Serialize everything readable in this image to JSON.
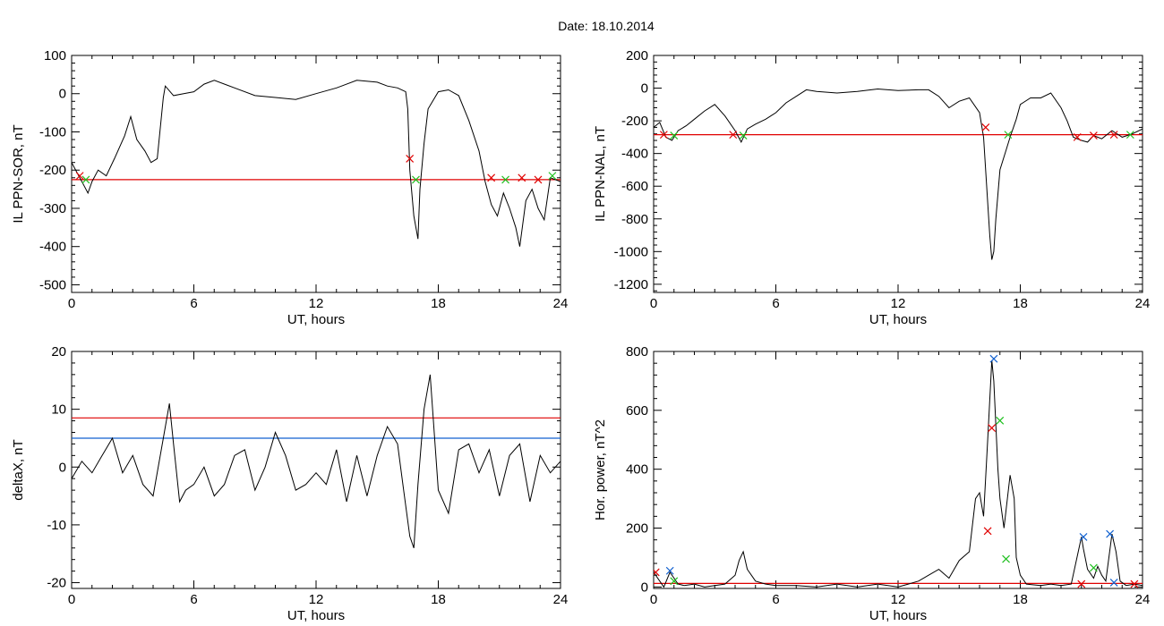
{
  "figure": {
    "title": "Date:  18.10.2014"
  },
  "colors": {
    "trace": "#000000",
    "threshold_red": "#e00000",
    "threshold_blue": "#1060d0",
    "marker_green": "#20c020",
    "marker_red": "#e00000",
    "marker_blue": "#1060d0"
  },
  "chart_data": [
    {
      "id": "p1",
      "type": "line",
      "xlabel": "UT, hours",
      "ylabel": "IL PPN-SOR, nT",
      "xlim": [
        0,
        24
      ],
      "ylim": [
        -520,
        100
      ],
      "xticks": [
        0,
        6,
        12,
        18,
        24
      ],
      "yticks": [
        100,
        0,
        -100,
        -200,
        -300,
        -400,
        -500
      ],
      "series": [
        {
          "role": "trace",
          "color": "#000000",
          "x": [
            0,
            0.3,
            0.6,
            0.8,
            1,
            1.3,
            1.7,
            2.1,
            2.6,
            2.9,
            3.2,
            3.6,
            3.9,
            4.2,
            4.5,
            4.6,
            5,
            5.5,
            6,
            6.5,
            7,
            8,
            9,
            10,
            11,
            12,
            13,
            14,
            15,
            15.5,
            16,
            16.4,
            16.5,
            16.6,
            16.8,
            17,
            17.1,
            17.3,
            17.5,
            18,
            18.5,
            19,
            19.5,
            20,
            20.3,
            20.6,
            20.9,
            21.2,
            21.5,
            21.8,
            22,
            22.3,
            22.6,
            22.9,
            23.2,
            23.5,
            24
          ],
          "y": [
            -180,
            -210,
            -240,
            -260,
            -230,
            -200,
            -215,
            -170,
            -110,
            -60,
            -120,
            -150,
            -180,
            -170,
            -10,
            20,
            -5,
            0,
            5,
            25,
            35,
            15,
            -5,
            -10,
            -15,
            0,
            15,
            35,
            30,
            20,
            15,
            5,
            -40,
            -200,
            -320,
            -380,
            -250,
            -130,
            -40,
            5,
            10,
            -5,
            -70,
            -150,
            -230,
            -290,
            -320,
            -260,
            -300,
            -350,
            -400,
            -280,
            -250,
            -300,
            -330,
            -220,
            -230
          ]
        },
        {
          "role": "threshold",
          "color": "#e00000",
          "x": [
            0,
            24
          ],
          "y": [
            -225,
            -225
          ]
        }
      ],
      "markers": [
        {
          "x": 0.4,
          "y": -215,
          "color": "#e00000"
        },
        {
          "x": 0.7,
          "y": -225,
          "color": "#20c020"
        },
        {
          "x": 16.6,
          "y": -170,
          "color": "#e00000"
        },
        {
          "x": 16.9,
          "y": -225,
          "color": "#20c020"
        },
        {
          "x": 20.6,
          "y": -220,
          "color": "#e00000"
        },
        {
          "x": 21.3,
          "y": -225,
          "color": "#20c020"
        },
        {
          "x": 22.1,
          "y": -220,
          "color": "#e00000"
        },
        {
          "x": 22.9,
          "y": -225,
          "color": "#e00000"
        },
        {
          "x": 23.6,
          "y": -215,
          "color": "#20c020"
        }
      ]
    },
    {
      "id": "p2",
      "type": "line",
      "xlabel": "UT, hours",
      "ylabel": "IL PPN-NAL, nT",
      "xlim": [
        0,
        24
      ],
      "ylim": [
        -1250,
        200
      ],
      "xticks": [
        0,
        6,
        12,
        18,
        24
      ],
      "yticks": [
        200,
        0,
        -200,
        -400,
        -600,
        -800,
        -1000,
        -1200
      ],
      "series": [
        {
          "role": "trace",
          "color": "#000000",
          "x": [
            0,
            0.3,
            0.6,
            0.9,
            1.2,
            1.6,
            2,
            2.5,
            3,
            3.5,
            4,
            4.3,
            4.6,
            5,
            5.5,
            6,
            6.5,
            7,
            7.5,
            8,
            9,
            10,
            11,
            12,
            13,
            13.5,
            14,
            14.5,
            15,
            15.5,
            16,
            16.2,
            16.4,
            16.5,
            16.6,
            16.7,
            16.8,
            17,
            17.3,
            17.5,
            17.8,
            18,
            18.5,
            19,
            19.5,
            20,
            20.3,
            20.6,
            21,
            21.3,
            21.6,
            22,
            22.5,
            23,
            23.5,
            24
          ],
          "y": [
            -240,
            -210,
            -300,
            -320,
            -260,
            -230,
            -190,
            -140,
            -100,
            -170,
            -260,
            -330,
            -250,
            -220,
            -190,
            -150,
            -90,
            -50,
            -10,
            -20,
            -30,
            -20,
            -5,
            -15,
            -10,
            -10,
            -50,
            -120,
            -80,
            -60,
            -150,
            -300,
            -700,
            -900,
            -1050,
            -1000,
            -800,
            -500,
            -380,
            -300,
            -190,
            -100,
            -60,
            -60,
            -30,
            -120,
            -200,
            -300,
            -320,
            -330,
            -290,
            -310,
            -260,
            -300,
            -280,
            -250
          ]
        },
        {
          "role": "threshold",
          "color": "#e00000",
          "x": [
            0,
            24
          ],
          "y": [
            -285,
            -285
          ]
        }
      ],
      "markers": [
        {
          "x": 0.5,
          "y": -285,
          "color": "#e00000"
        },
        {
          "x": 1.0,
          "y": -290,
          "color": "#20c020"
        },
        {
          "x": 3.9,
          "y": -285,
          "color": "#e00000"
        },
        {
          "x": 4.4,
          "y": -290,
          "color": "#20c020"
        },
        {
          "x": 16.3,
          "y": -240,
          "color": "#e00000"
        },
        {
          "x": 17.4,
          "y": -285,
          "color": "#20c020"
        },
        {
          "x": 20.8,
          "y": -300,
          "color": "#e00000"
        },
        {
          "x": 21.6,
          "y": -290,
          "color": "#e00000"
        },
        {
          "x": 22.6,
          "y": -285,
          "color": "#e00000"
        },
        {
          "x": 23.4,
          "y": -285,
          "color": "#20c020"
        }
      ]
    },
    {
      "id": "p3",
      "type": "line",
      "xlabel": "UT, hours",
      "ylabel": "deltaX, nT",
      "xlim": [
        0,
        24
      ],
      "ylim": [
        -21,
        20
      ],
      "xticks": [
        0,
        6,
        12,
        18,
        24
      ],
      "yticks": [
        20,
        10,
        0,
        -10,
        -20
      ],
      "series": [
        {
          "role": "trace",
          "color": "#000000",
          "x": [
            0,
            0.5,
            1,
            1.5,
            2,
            2.5,
            3,
            3.5,
            4,
            4.5,
            4.8,
            5,
            5.3,
            5.6,
            6,
            6.5,
            7,
            7.5,
            8,
            8.5,
            9,
            9.5,
            10,
            10.5,
            11,
            11.5,
            12,
            12.5,
            13,
            13.5,
            14,
            14.5,
            15,
            15.5,
            16,
            16.3,
            16.6,
            16.8,
            17,
            17.3,
            17.6,
            18,
            18.5,
            19,
            19.5,
            20,
            20.5,
            21,
            21.5,
            22,
            22.5,
            23,
            23.5,
            24
          ],
          "y": [
            -2,
            1,
            -1,
            2,
            5,
            -1,
            2,
            -3,
            -5,
            5,
            11,
            4,
            -6,
            -4,
            -3,
            0,
            -5,
            -3,
            2,
            3,
            -4,
            0,
            6,
            2,
            -4,
            -3,
            -1,
            -3,
            3,
            -6,
            2,
            -5,
            2,
            7,
            4,
            -4,
            -12,
            -14,
            -3,
            10,
            16,
            -4,
            -8,
            3,
            4,
            -1,
            3,
            -5,
            2,
            4,
            -6,
            2,
            -1,
            1
          ]
        },
        {
          "role": "threshold-red",
          "color": "#e00000",
          "x": [
            0,
            24
          ],
          "y": [
            8.5,
            8.5
          ]
        },
        {
          "role": "threshold-blue",
          "color": "#1060d0",
          "x": [
            0,
            24
          ],
          "y": [
            5,
            5
          ]
        }
      ],
      "markers": []
    },
    {
      "id": "p4",
      "type": "line",
      "xlabel": "UT, hours",
      "ylabel": "Hor. power, nT^2",
      "xlim": [
        0,
        24
      ],
      "ylim": [
        -5,
        800
      ],
      "xticks": [
        0,
        6,
        12,
        18,
        24
      ],
      "yticks": [
        800,
        600,
        400,
        200,
        0
      ],
      "series": [
        {
          "role": "trace",
          "color": "#000000",
          "x": [
            0,
            0.5,
            0.8,
            1,
            1.2,
            1.5,
            2,
            2.5,
            3,
            3.5,
            4,
            4.2,
            4.4,
            4.6,
            4.8,
            5,
            5.5,
            6,
            7,
            8,
            9,
            10,
            11,
            12,
            12.5,
            13,
            13.5,
            14,
            14.5,
            15,
            15.5,
            15.8,
            16,
            16.2,
            16.4,
            16.6,
            16.7,
            16.9,
            17,
            17.2,
            17.5,
            17.7,
            17.8,
            18,
            18.3,
            19,
            19.5,
            20,
            20.5,
            21,
            21.1,
            21.3,
            21.6,
            21.8,
            22,
            22.2,
            22.5,
            22.7,
            22.9,
            23.2,
            23.6,
            24
          ],
          "y": [
            50,
            0,
            50,
            30,
            10,
            5,
            10,
            0,
            5,
            10,
            40,
            90,
            120,
            60,
            40,
            20,
            10,
            5,
            5,
            0,
            10,
            0,
            10,
            0,
            10,
            20,
            40,
            60,
            30,
            90,
            120,
            300,
            320,
            240,
            500,
            770,
            700,
            400,
            300,
            200,
            380,
            300,
            100,
            40,
            10,
            5,
            10,
            5,
            10,
            170,
            130,
            60,
            30,
            70,
            40,
            20,
            180,
            120,
            20,
            5,
            10,
            5
          ]
        },
        {
          "role": "threshold",
          "color": "#e00000",
          "x": [
            0,
            24
          ],
          "y": [
            12,
            12
          ]
        }
      ],
      "markers": [
        {
          "x": 0.1,
          "y": 50,
          "color": "#e00000"
        },
        {
          "x": 0.8,
          "y": 55,
          "color": "#1060d0"
        },
        {
          "x": 1.0,
          "y": 20,
          "color": "#20c020"
        },
        {
          "x": 16.4,
          "y": 190,
          "color": "#e00000"
        },
        {
          "x": 16.6,
          "y": 540,
          "color": "#e00000"
        },
        {
          "x": 16.7,
          "y": 775,
          "color": "#1060d0"
        },
        {
          "x": 17.0,
          "y": 565,
          "color": "#20c020"
        },
        {
          "x": 17.3,
          "y": 95,
          "color": "#20c020"
        },
        {
          "x": 21.0,
          "y": 10,
          "color": "#e00000"
        },
        {
          "x": 21.1,
          "y": 170,
          "color": "#1060d0"
        },
        {
          "x": 21.6,
          "y": 65,
          "color": "#20c020"
        },
        {
          "x": 22.4,
          "y": 180,
          "color": "#1060d0"
        },
        {
          "x": 22.6,
          "y": 15,
          "color": "#1060d0"
        },
        {
          "x": 23.6,
          "y": 10,
          "color": "#e00000"
        }
      ]
    }
  ]
}
